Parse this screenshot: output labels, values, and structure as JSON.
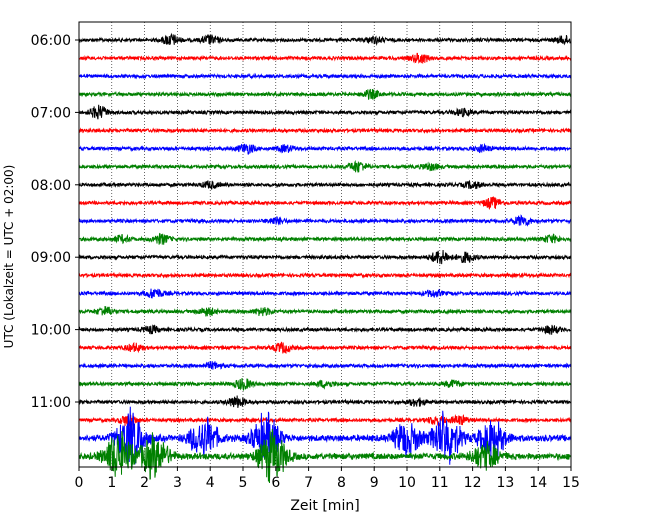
{
  "chart_data": {
    "type": "line",
    "title": "",
    "xlabel": "Zeit  [min]",
    "ylabel": "UTC (Lokalzeit = UTC + 02:00)",
    "xlim": [
      0,
      15
    ],
    "x_ticks": [
      "0",
      "1",
      "2",
      "3",
      "4",
      "5",
      "6",
      "7",
      "8",
      "9",
      "10",
      "11",
      "12",
      "13",
      "14",
      "15"
    ],
    "y_ticks": [
      "06:00",
      "07:00",
      "08:00",
      "09:00",
      "10:00",
      "11:00"
    ],
    "grid": "vertical dotted lines at each minute",
    "trace_interval_minutes": 15,
    "trace_color_cycle": [
      "#000000",
      "#ff0000",
      "#0000ff",
      "#008000"
    ],
    "traces": [
      {
        "start": "06:00",
        "color": "#000000",
        "amplitude": "low",
        "bursts": [
          [
            2.8,
            1.0
          ],
          [
            4.0,
            0.8
          ],
          [
            9.0,
            0.6
          ],
          [
            14.8,
            0.7
          ]
        ]
      },
      {
        "start": "06:15",
        "color": "#ff0000",
        "amplitude": "low",
        "bursts": [
          [
            10.4,
            0.9
          ]
        ]
      },
      {
        "start": "06:30",
        "color": "#0000ff",
        "amplitude": "low",
        "bursts": []
      },
      {
        "start": "06:45",
        "color": "#008000",
        "amplitude": "low",
        "bursts": [
          [
            8.9,
            0.8
          ]
        ]
      },
      {
        "start": "07:00",
        "color": "#000000",
        "amplitude": "low",
        "bursts": [
          [
            0.6,
            1.2
          ],
          [
            11.7,
            0.6
          ]
        ]
      },
      {
        "start": "07:15",
        "color": "#ff0000",
        "amplitude": "low",
        "bursts": []
      },
      {
        "start": "07:30",
        "color": "#0000ff",
        "amplitude": "low",
        "bursts": [
          [
            5.1,
            0.9
          ],
          [
            6.3,
            0.6
          ],
          [
            12.3,
            0.6
          ]
        ]
      },
      {
        "start": "07:45",
        "color": "#008000",
        "amplitude": "low",
        "bursts": [
          [
            8.5,
            1.0
          ],
          [
            10.7,
            0.6
          ]
        ]
      },
      {
        "start": "08:00",
        "color": "#000000",
        "amplitude": "low",
        "bursts": [
          [
            4.0,
            0.6
          ],
          [
            12.0,
            0.6
          ]
        ]
      },
      {
        "start": "08:15",
        "color": "#ff0000",
        "amplitude": "low",
        "bursts": [
          [
            12.6,
            1.0
          ]
        ]
      },
      {
        "start": "08:30",
        "color": "#0000ff",
        "amplitude": "low",
        "bursts": [
          [
            6.0,
            0.6
          ],
          [
            13.5,
            0.9
          ]
        ]
      },
      {
        "start": "08:45",
        "color": "#008000",
        "amplitude": "low",
        "bursts": [
          [
            1.3,
            0.6
          ],
          [
            2.5,
            0.9
          ],
          [
            14.4,
            0.7
          ]
        ]
      },
      {
        "start": "09:00",
        "color": "#000000",
        "amplitude": "low",
        "bursts": [
          [
            11.0,
            1.3
          ],
          [
            11.8,
            0.9
          ]
        ]
      },
      {
        "start": "09:15",
        "color": "#ff0000",
        "amplitude": "low",
        "bursts": []
      },
      {
        "start": "09:30",
        "color": "#0000ff",
        "amplitude": "low",
        "bursts": [
          [
            2.3,
            0.9
          ],
          [
            10.8,
            0.6
          ]
        ]
      },
      {
        "start": "09:45",
        "color": "#008000",
        "amplitude": "low",
        "bursts": [
          [
            0.8,
            0.8
          ],
          [
            3.9,
            0.7
          ],
          [
            5.6,
            0.7
          ]
        ]
      },
      {
        "start": "10:00",
        "color": "#000000",
        "amplitude": "low",
        "bursts": [
          [
            2.2,
            0.6
          ],
          [
            14.4,
            0.7
          ]
        ]
      },
      {
        "start": "10:15",
        "color": "#ff0000",
        "amplitude": "low",
        "bursts": [
          [
            1.7,
            0.7
          ],
          [
            6.2,
            0.9
          ]
        ]
      },
      {
        "start": "10:30",
        "color": "#0000ff",
        "amplitude": "low",
        "bursts": [
          [
            4.1,
            0.6
          ]
        ]
      },
      {
        "start": "10:45",
        "color": "#008000",
        "amplitude": "low",
        "bursts": [
          [
            5.0,
            1.0
          ],
          [
            7.5,
            0.6
          ],
          [
            11.4,
            0.6
          ]
        ]
      },
      {
        "start": "11:00",
        "color": "#000000",
        "amplitude": "low",
        "bursts": [
          [
            4.8,
            1.0
          ],
          [
            10.3,
            0.7
          ]
        ]
      },
      {
        "start": "11:15",
        "color": "#ff0000",
        "amplitude": "low",
        "bursts": [
          [
            1.5,
            1.0
          ],
          [
            10.9,
            0.8
          ],
          [
            11.6,
            0.8
          ]
        ]
      },
      {
        "start": "11:30",
        "color": "#0000ff",
        "amplitude": "high",
        "bursts": [
          [
            1.6,
            2.8
          ],
          [
            3.8,
            2.0
          ],
          [
            5.7,
            2.2
          ],
          [
            10.0,
            1.6
          ],
          [
            11.2,
            2.4
          ],
          [
            12.6,
            1.8
          ]
        ]
      },
      {
        "start": "11:45",
        "color": "#008000",
        "amplitude": "high",
        "bursts": [
          [
            1.2,
            2.2
          ],
          [
            2.3,
            2.0
          ],
          [
            5.9,
            2.4
          ],
          [
            12.4,
            1.2
          ]
        ]
      }
    ]
  }
}
